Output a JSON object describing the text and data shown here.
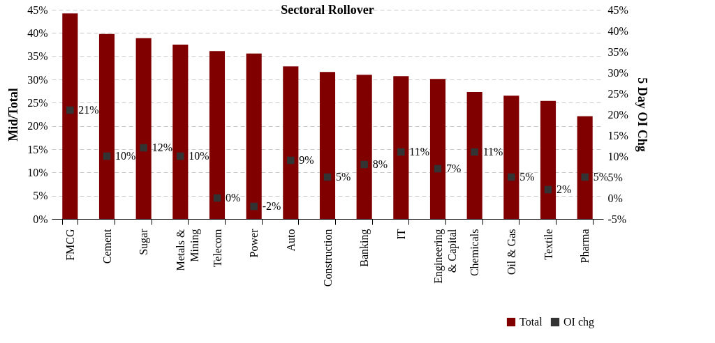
{
  "chart_data": {
    "type": "bar",
    "title": "Sectoral Rollover",
    "ylabel": "Mid/Total",
    "y2label": "5 Day OI Chg",
    "categories": [
      "FMCG",
      "Cement",
      "Sugar",
      "Metals & Mining",
      "Telecom",
      "Power",
      "Auto",
      "Construction",
      "Banking",
      "IT",
      "Engineering & Capital",
      "Chemicals",
      "Oil & Gas",
      "Textile",
      "Pharma"
    ],
    "series": [
      {
        "name": "Total",
        "color": "#800000",
        "values": [
          44.2,
          39.8,
          38.9,
          37.5,
          36.1,
          35.6,
          32.8,
          31.6,
          31.0,
          30.7,
          30.1,
          27.3,
          26.5,
          25.4,
          22.1
        ]
      },
      {
        "name": "OI chg",
        "type": "scatter",
        "axis": "y2",
        "color": "#333333",
        "marker": "square",
        "values": [
          21,
          10,
          12,
          10,
          0,
          -2,
          9,
          5,
          8,
          11,
          7,
          11,
          5,
          2,
          5
        ],
        "value_labels": [
          "21%",
          "10%",
          "12%",
          "10%",
          "0%",
          "-2%",
          "9%",
          "5%",
          "8%",
          "11%",
          "7%",
          "11%",
          "5%",
          "2%",
          "5%"
        ]
      }
    ],
    "ylim": [
      0,
      45
    ],
    "yticks": [
      {
        "value": 0,
        "label": "0%"
      },
      {
        "value": 5,
        "label": "5%"
      },
      {
        "value": 10,
        "label": "10%"
      },
      {
        "value": 15,
        "label": "15%"
      },
      {
        "value": 20,
        "label": "20%"
      },
      {
        "value": 25,
        "label": "25%"
      },
      {
        "value": 30,
        "label": "30%"
      },
      {
        "value": 35,
        "label": "35%"
      },
      {
        "value": 40,
        "label": "40%"
      },
      {
        "value": 45,
        "label": "45%"
      }
    ],
    "y2lim": [
      -5,
      45
    ],
    "y2ticks": [
      {
        "value": -5,
        "label": "-5%"
      },
      {
        "value": 0,
        "label": "0%"
      },
      {
        "value": 5,
        "label": "5%"
      },
      {
        "value": 10,
        "label": "10%"
      },
      {
        "value": 15,
        "label": "15%"
      },
      {
        "value": 20,
        "label": "20%"
      },
      {
        "value": 25,
        "label": "25%"
      },
      {
        "value": 30,
        "label": "30%"
      },
      {
        "value": 35,
        "label": "35%"
      },
      {
        "value": 40,
        "label": "40%"
      },
      {
        "value": 45,
        "label": "45%"
      }
    ],
    "grid": "y",
    "legend": "bottom right"
  }
}
